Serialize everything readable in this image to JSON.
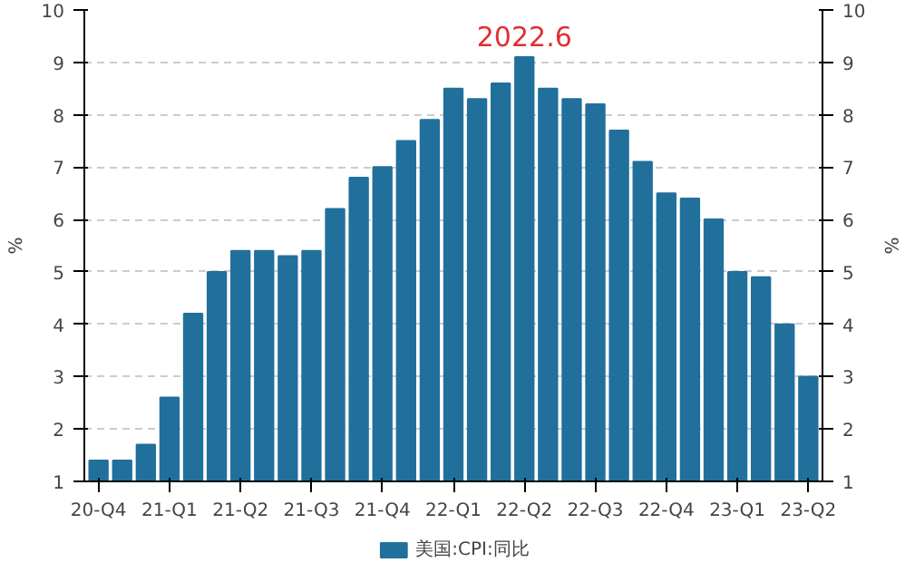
{
  "chart_data": {
    "type": "bar",
    "ylabel": "%",
    "y2label": "%",
    "categories": [
      "20-Q4",
      null,
      null,
      "21-Q1",
      null,
      null,
      "21-Q2",
      null,
      null,
      "21-Q3",
      null,
      null,
      "21-Q4",
      null,
      null,
      "22-Q1",
      null,
      null,
      "22-Q2",
      null,
      null,
      "22-Q3",
      null,
      null,
      "22-Q4",
      null,
      null,
      "23-Q1",
      null,
      null,
      "23-Q2"
    ],
    "series": [
      {
        "name": "美国:CPI:同比",
        "color": "#21709c",
        "values": [
          1.4,
          1.4,
          1.7,
          2.6,
          4.2,
          5.0,
          5.4,
          5.4,
          5.3,
          5.4,
          6.2,
          6.8,
          7.0,
          7.5,
          7.9,
          8.5,
          8.3,
          8.6,
          9.1,
          8.5,
          8.3,
          8.2,
          7.7,
          7.1,
          6.5,
          6.4,
          6.0,
          5.0,
          4.9,
          4.0,
          3.0
        ]
      }
    ],
    "ylim": [
      1,
      10
    ],
    "yticks": [
      1,
      2,
      3,
      4,
      5,
      6,
      7,
      8,
      9,
      10
    ],
    "y2lim": [
      1,
      10
    ],
    "y2ticks": [
      1,
      2,
      3,
      4,
      5,
      6,
      7,
      8,
      9,
      10
    ],
    "grid": "y",
    "legend": "bottom",
    "annotations": [
      {
        "text": "2022.6",
        "x": "22-Q2",
        "y": 9.1
      }
    ]
  }
}
